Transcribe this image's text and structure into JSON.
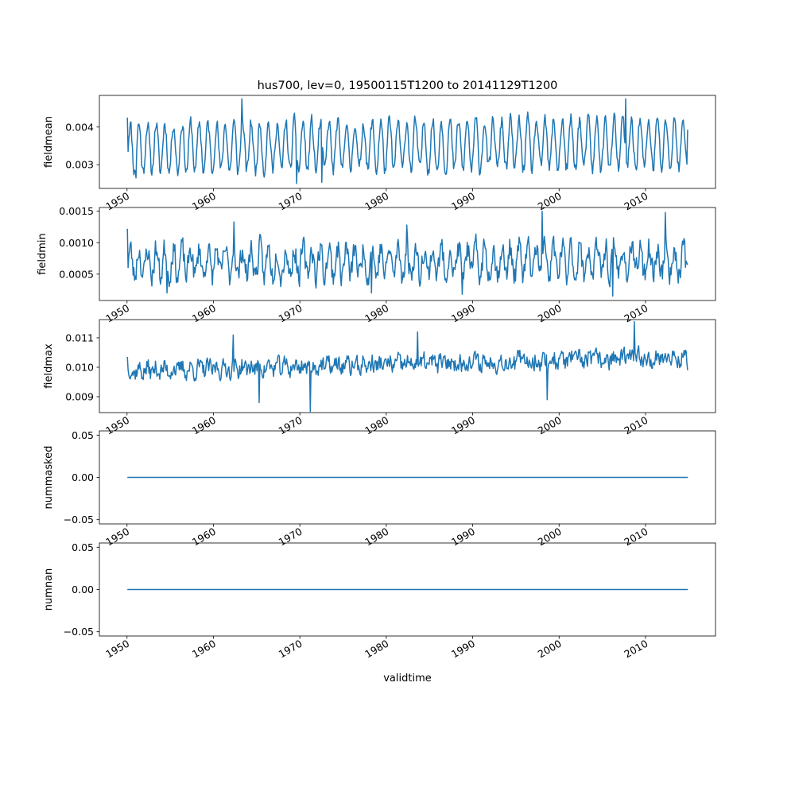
{
  "figure": {
    "title": "hus700, lev=0, 19500115T1200 to 20141129T1200",
    "xlabel": "validtime",
    "line_color": "#1f77b4"
  },
  "chart_data": [
    {
      "type": "line",
      "ylabel": "fieldmean",
      "x_start": 1950.04,
      "x_end": 2014.91,
      "xlim": [
        1946.8,
        2018.1
      ],
      "ylim": [
        0.00237,
        0.00484
      ],
      "yticks": [
        0.003,
        0.004
      ],
      "ytick_labels": [
        "0.003",
        "0.004"
      ],
      "xticks": [
        1950,
        1960,
        1970,
        1980,
        1990,
        2000,
        2010
      ],
      "xtick_labels": [
        "1950",
        "1960",
        "1970",
        "1980",
        "1990",
        "2000",
        "2010"
      ],
      "seasonal": {
        "mean": 0.00345,
        "amplitude": 0.00065,
        "trend_per_year": 1.6e-06,
        "noise": 0.00018,
        "seed": 11
      },
      "anchors": [
        {
          "x": 1950.0,
          "y": 0.00425
        },
        {
          "x": 1951.0,
          "y": 0.00265
        },
        {
          "x": 1963.3,
          "y": 0.00475
        },
        {
          "x": 1969.6,
          "y": 0.0025
        },
        {
          "x": 1972.5,
          "y": 0.00253
        },
        {
          "x": 2007.7,
          "y": 0.00475
        },
        {
          "x": 2014.9,
          "y": 0.00393
        }
      ]
    },
    {
      "type": "line",
      "ylabel": "fieldmin",
      "x_start": 1950.04,
      "x_end": 2014.91,
      "xlim": [
        1946.8,
        2018.1
      ],
      "ylim": [
        8e-05,
        0.00156
      ],
      "yticks": [
        0.0005,
        0.001,
        0.0015
      ],
      "ytick_labels": [
        "0.0005",
        "0.0010",
        "0.0015"
      ],
      "seasonal": {
        "mean": 0.00068,
        "amplitude": 0.00022,
        "trend_per_year": 6e-07,
        "noise": 0.00018,
        "seed": 23
      },
      "anchors": [
        {
          "x": 1950.0,
          "y": 0.00122
        },
        {
          "x": 1954.6,
          "y": 0.0002
        },
        {
          "x": 1962.4,
          "y": 0.00133
        },
        {
          "x": 1978.3,
          "y": 0.0002
        },
        {
          "x": 1982.4,
          "y": 0.00128
        },
        {
          "x": 1988.8,
          "y": 0.00018
        },
        {
          "x": 1998.0,
          "y": 0.0015
        },
        {
          "x": 2006.2,
          "y": 0.00015
        },
        {
          "x": 2012.3,
          "y": 0.00148
        },
        {
          "x": 2014.9,
          "y": 0.00065
        }
      ]
    },
    {
      "type": "line",
      "ylabel": "fieldmax",
      "x_start": 1950.04,
      "x_end": 2014.91,
      "xlim": [
        1946.8,
        2018.1
      ],
      "ylim": [
        0.00846,
        0.01162
      ],
      "yticks": [
        0.009,
        0.01,
        0.011
      ],
      "ytick_labels": [
        "0.009",
        "0.010",
        "0.011"
      ],
      "seasonal": {
        "mean": 0.00988,
        "amplitude": 9e-05,
        "trend_per_year": 7.2e-06,
        "noise": 0.00028,
        "seed": 37
      },
      "anchors": [
        {
          "x": 1950.0,
          "y": 0.01035
        },
        {
          "x": 1962.3,
          "y": 0.0111
        },
        {
          "x": 1965.3,
          "y": 0.0088
        },
        {
          "x": 1971.2,
          "y": 0.0085
        },
        {
          "x": 1983.6,
          "y": 0.0112
        },
        {
          "x": 1998.6,
          "y": 0.0089
        },
        {
          "x": 2008.7,
          "y": 0.01155
        },
        {
          "x": 2014.9,
          "y": 0.0099
        }
      ]
    },
    {
      "type": "line",
      "ylabel": "nummasked",
      "x": [
        1950.04,
        2014.91
      ],
      "y": [
        0.0,
        0.0
      ],
      "xlim": [
        1946.8,
        2018.1
      ],
      "ylim": [
        -0.055,
        0.055
      ],
      "yticks": [
        -0.05,
        0.0,
        0.05
      ],
      "ytick_labels": [
        "−0.05",
        "0.00",
        "0.05"
      ]
    },
    {
      "type": "line",
      "ylabel": "numnan",
      "x": [
        1950.04,
        2014.91
      ],
      "y": [
        0.0,
        0.0
      ],
      "xlim": [
        1946.8,
        2018.1
      ],
      "ylim": [
        -0.055,
        0.055
      ],
      "yticks": [
        -0.05,
        0.0,
        0.05
      ],
      "ytick_labels": [
        "−0.05",
        "0.00",
        "0.05"
      ]
    }
  ]
}
